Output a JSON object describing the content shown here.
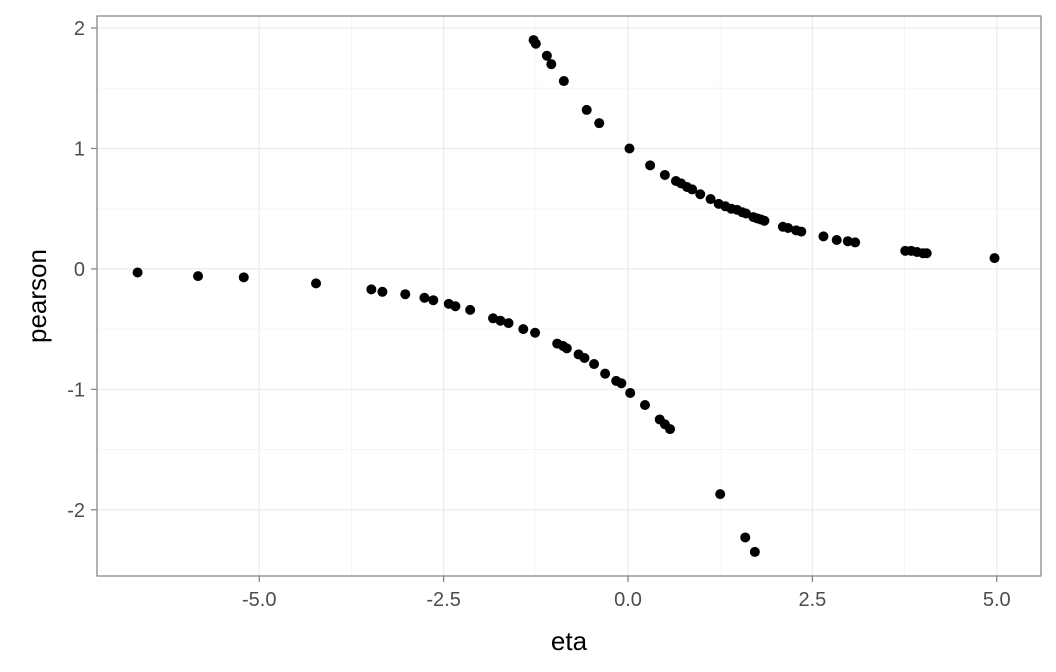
{
  "chart_data": {
    "type": "scatter",
    "title": "",
    "xlabel": "eta",
    "ylabel": "pearson",
    "xlim": [
      -7.2,
      5.6
    ],
    "ylim": [
      -2.55,
      2.1
    ],
    "x_ticks": [
      -5.0,
      -2.5,
      0.0,
      2.5,
      5.0
    ],
    "x_tick_labels": [
      "-5.0",
      "-2.5",
      "0.0",
      "2.5",
      "5.0"
    ],
    "y_ticks": [
      -2,
      -1,
      0,
      1,
      2
    ],
    "y_tick_labels": [
      "-2",
      "-1",
      "0",
      "1",
      "2"
    ],
    "grid": true,
    "legend": "none",
    "point_color": "#000000",
    "series": [
      {
        "points": [
          [
            -6.65,
            -0.03
          ],
          [
            -5.83,
            -0.06
          ],
          [
            -5.21,
            -0.07
          ],
          [
            -4.23,
            -0.12
          ],
          [
            -3.48,
            -0.17
          ],
          [
            -3.33,
            -0.19
          ],
          [
            -3.02,
            -0.21
          ],
          [
            -2.76,
            -0.24
          ],
          [
            -2.64,
            -0.26
          ],
          [
            -2.43,
            -0.29
          ],
          [
            -2.34,
            -0.31
          ],
          [
            -2.14,
            -0.34
          ],
          [
            -1.83,
            -0.41
          ],
          [
            -1.73,
            -0.43
          ],
          [
            -1.62,
            -0.45
          ],
          [
            -1.42,
            -0.5
          ],
          [
            -1.26,
            -0.53
          ],
          [
            -0.96,
            -0.62
          ],
          [
            -0.88,
            -0.64
          ],
          [
            -0.83,
            -0.66
          ],
          [
            -0.67,
            -0.71
          ],
          [
            -0.59,
            -0.74
          ],
          [
            -0.46,
            -0.79
          ],
          [
            -0.31,
            -0.87
          ],
          [
            -0.16,
            -0.93
          ],
          [
            -0.09,
            -0.95
          ],
          [
            0.03,
            -1.03
          ],
          [
            0.23,
            -1.13
          ],
          [
            0.43,
            -1.25
          ],
          [
            0.5,
            -1.29
          ],
          [
            0.57,
            -1.33
          ],
          [
            1.25,
            -1.87
          ],
          [
            1.59,
            -2.23
          ],
          [
            1.72,
            -2.35
          ],
          [
            -1.28,
            1.9
          ],
          [
            -1.25,
            1.87
          ],
          [
            -1.1,
            1.77
          ],
          [
            -1.04,
            1.7
          ],
          [
            -0.87,
            1.56
          ],
          [
            -0.56,
            1.32
          ],
          [
            -0.39,
            1.21
          ],
          [
            0.02,
            1.0
          ],
          [
            0.3,
            0.86
          ],
          [
            0.5,
            0.78
          ],
          [
            0.65,
            0.73
          ],
          [
            0.72,
            0.71
          ],
          [
            0.8,
            0.68
          ],
          [
            0.87,
            0.66
          ],
          [
            0.98,
            0.62
          ],
          [
            1.12,
            0.58
          ],
          [
            1.23,
            0.54
          ],
          [
            1.32,
            0.52
          ],
          [
            1.4,
            0.5
          ],
          [
            1.48,
            0.49
          ],
          [
            1.55,
            0.47
          ],
          [
            1.6,
            0.46
          ],
          [
            1.7,
            0.43
          ],
          [
            1.75,
            0.42
          ],
          [
            1.8,
            0.41
          ],
          [
            1.85,
            0.4
          ],
          [
            2.1,
            0.35
          ],
          [
            2.17,
            0.34
          ],
          [
            2.28,
            0.32
          ],
          [
            2.35,
            0.31
          ],
          [
            2.65,
            0.27
          ],
          [
            2.83,
            0.24
          ],
          [
            2.98,
            0.23
          ],
          [
            3.08,
            0.22
          ],
          [
            3.76,
            0.15
          ],
          [
            3.84,
            0.15
          ],
          [
            3.92,
            0.14
          ],
          [
            4.0,
            0.13
          ],
          [
            4.05,
            0.13
          ],
          [
            4.97,
            0.09
          ]
        ]
      }
    ]
  }
}
